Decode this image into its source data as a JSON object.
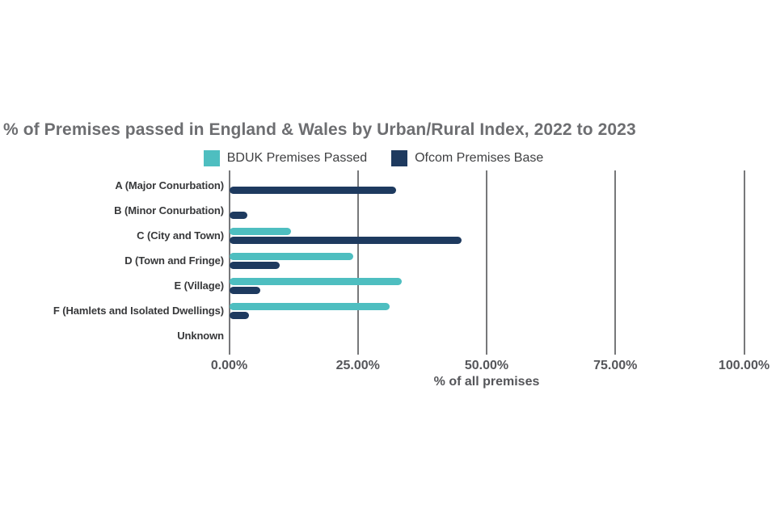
{
  "chart_data": {
    "type": "bar",
    "orientation": "horizontal",
    "title": "% of Premises passed in England & Wales by Urban/Rural Index, 2022 to 2023",
    "xlabel": "% of all premises",
    "xlim": [
      0,
      100
    ],
    "x_tick_labels": [
      "0.00%",
      "25.00%",
      "50.00%",
      "75.00%",
      "100.00%"
    ],
    "grid": true,
    "legend_position": "top-center",
    "categories": [
      "A (Major Conurbation)",
      "B (Minor Conurbation)",
      "C (City and Town)",
      "D (Town and Fringe)",
      "E (Village)",
      "F (Hamlets and Isolated Dwellings)",
      "Unknown"
    ],
    "series": [
      {
        "name": "BDUK Premises Passed",
        "color": "#4ebec0",
        "values": [
          0,
          0,
          12,
          24,
          33.5,
          31,
          0
        ]
      },
      {
        "name": "Ofcom Premises Base",
        "color": "#1e3a5f",
        "values": [
          32.4,
          3.5,
          45,
          9.8,
          5.9,
          3.8,
          0
        ]
      }
    ]
  },
  "palette": {
    "title_text": "#6d6e71",
    "category_label_text": "#37383a",
    "tick_label_text": "#55565a",
    "legend_text": "#3f4042",
    "gridline": "#77787a",
    "background": "#ffffff"
  }
}
